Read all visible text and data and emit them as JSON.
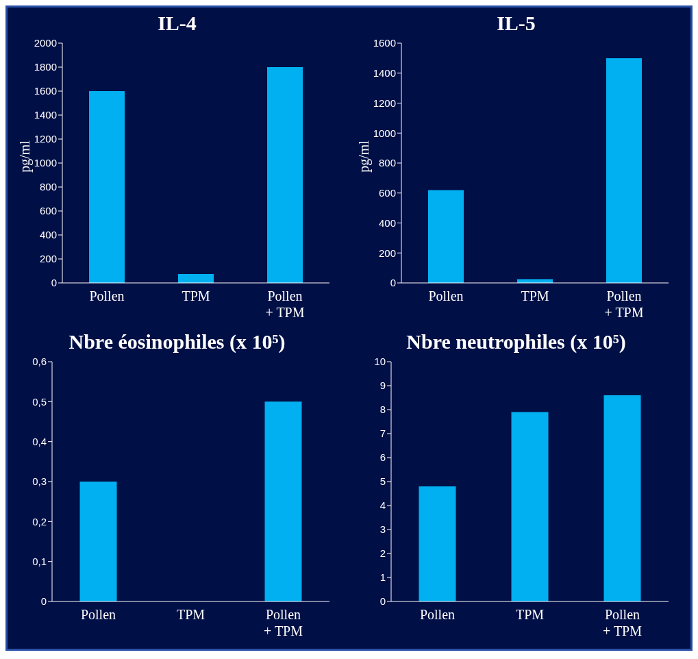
{
  "chart_data": [
    {
      "type": "bar",
      "title": "IL-4",
      "ylabel": "pg/ml",
      "categories": [
        "Pollen",
        "TPM",
        "Pollen + TPM"
      ],
      "values": [
        1600,
        75,
        1800
      ],
      "color": "#00b0f0",
      "ylim": [
        0,
        2000
      ],
      "yticks": [
        0,
        200,
        400,
        600,
        800,
        1000,
        1200,
        1400,
        1600,
        1800,
        2000
      ],
      "grid": false
    },
    {
      "type": "bar",
      "title": "IL-5",
      "ylabel": "pg/ml",
      "categories": [
        "Pollen",
        "TPM",
        "Pollen + TPM"
      ],
      "values": [
        620,
        25,
        1500
      ],
      "color": "#00b0f0",
      "ylim": [
        0,
        1600
      ],
      "yticks": [
        0,
        200,
        400,
        600,
        800,
        1000,
        1200,
        1400,
        1600
      ],
      "grid": false
    },
    {
      "type": "bar",
      "title": "Nbre éosinophiles (x 10⁵)",
      "categories": [
        "Pollen",
        "TPM",
        "Pollen + TPM"
      ],
      "values": [
        0.3,
        0,
        0.5
      ],
      "color": "#00b0f0",
      "ylim": [
        0,
        0.6
      ],
      "yticks": [
        0,
        {
          "value": 0.1,
          "label": "0,1"
        },
        {
          "value": 0.2,
          "label": "0,2"
        },
        {
          "value": 0.3,
          "label": "0,3"
        },
        {
          "value": 0.4,
          "label": "0,4"
        },
        {
          "value": 0.5,
          "label": "0,5"
        },
        {
          "value": 0.6,
          "label": "0,6"
        }
      ],
      "grid": false
    },
    {
      "type": "bar",
      "title": "Nbre neutrophiles (x 10⁵)",
      "categories": [
        "Pollen",
        "TPM",
        "Pollen + TPM"
      ],
      "values": [
        4.8,
        7.9,
        8.6
      ],
      "color": "#00b0f0",
      "ylim": [
        0,
        10
      ],
      "yticks": [
        0,
        1,
        2,
        3,
        4,
        5,
        6,
        7,
        8,
        9,
        10
      ],
      "grid": false
    }
  ]
}
